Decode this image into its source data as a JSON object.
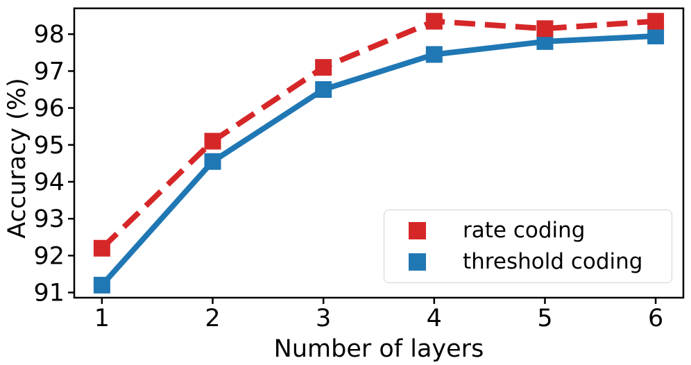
{
  "chart_data": {
    "type": "line",
    "title": "",
    "xlabel": "Number of layers",
    "ylabel": "Accuracy (%)",
    "x": [
      1,
      2,
      3,
      4,
      5,
      6
    ],
    "xticks": [
      1,
      2,
      3,
      4,
      5,
      6
    ],
    "yticks": [
      91,
      92,
      93,
      94,
      95,
      96,
      97,
      98
    ],
    "xlim": [
      0.75,
      6.25
    ],
    "ylim": [
      90.86,
      98.7
    ],
    "grid": false,
    "axis_color": "#000000",
    "legend": {
      "position": "lower right",
      "border_color": "#d2d2d2",
      "background": "#ffffff"
    },
    "series": [
      {
        "name": "rate coding",
        "color": "#d62728",
        "line_style": "dashed",
        "marker": "square",
        "values": [
          92.2,
          95.1,
          97.1,
          98.35,
          98.15,
          98.35
        ]
      },
      {
        "name": "threshold coding",
        "color": "#1f77b4",
        "line_style": "solid",
        "marker": "square",
        "values": [
          91.2,
          94.55,
          96.5,
          97.45,
          97.8,
          97.95
        ]
      }
    ]
  }
}
